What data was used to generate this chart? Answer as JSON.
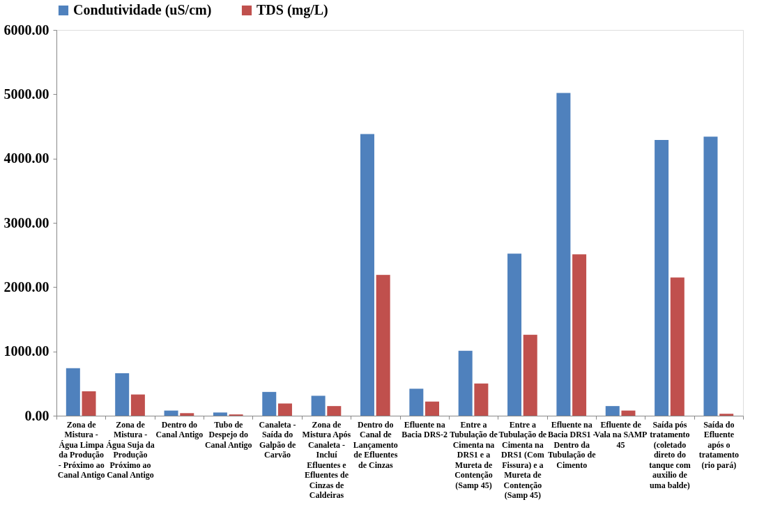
{
  "chart_data": {
    "type": "bar",
    "categories": [
      "Zona de Mistura - Água Limpa da Produção - Próximo ao Canal Antigo",
      "Zona de Mistura - Água Suja da Produção Próximo ao Canal Antigo",
      "Dentro do Canal Antigo",
      "Tubo de Despejo do Canal Antigo",
      "Canaleta - Saída do Galpão de Carvão",
      "Zona de Mistura Após Canaleta - Incluí Efluentes e Efluentes de Cinzas de Caldeiras",
      "Dentro do Canal de Lançamento de Efluentes de Cinzas",
      "Efluente na Bacia DRS-2",
      "Entre a Tubulação de Cimenta na DRS1 e a Mureta de Contenção (Samp 45)",
      "Entre a Tubulação de Cimenta na DRS1 (Com Fissura) e a Mureta de Contenção (Samp 45)",
      "Efluente na Bacia DRS1 - Dentro da Tubulação de Cimento",
      "Efluente de Vala na SAMP 45",
      "Saída pós tratamento (coletado direto do tanque com auxilio de uma balde)",
      "Saída do Efluente após o tratamento (rio pará)"
    ],
    "series": [
      {
        "name": "Condutividade (uS/cm)",
        "color": "#4f81bd",
        "values": [
          740,
          660,
          80,
          50,
          370,
          310,
          4380,
          420,
          1010,
          2520,
          5020,
          150,
          4290,
          4340
        ]
      },
      {
        "name": "TDS (mg/L)",
        "color": "#c0504d",
        "values": [
          380,
          330,
          40,
          20,
          190,
          150,
          2190,
          220,
          500,
          1260,
          2510,
          80,
          2150,
          30
        ]
      }
    ],
    "ylim": [
      0,
      6000
    ],
    "yticks": [
      {
        "value": 0,
        "label": "0.00"
      },
      {
        "value": 1000,
        "label": "1000.00"
      },
      {
        "value": 2000,
        "label": "2000.00"
      },
      {
        "value": 3000,
        "label": "3000.00"
      },
      {
        "value": 4000,
        "label": "4000.00"
      },
      {
        "value": 5000,
        "label": "5000.00"
      },
      {
        "value": 6000,
        "label": "6000.00"
      }
    ],
    "grid": false,
    "legend": "top"
  }
}
